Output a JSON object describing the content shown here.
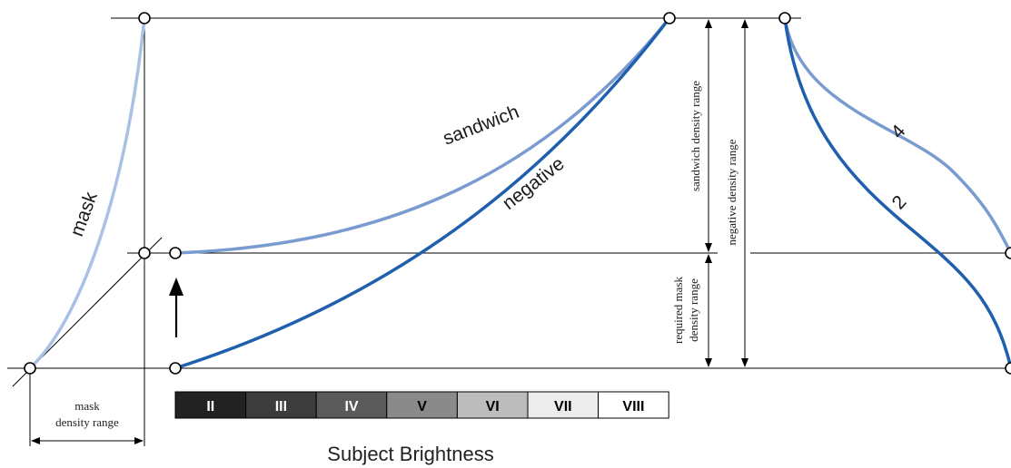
{
  "labels": {
    "mask": "mask",
    "sandwich": "sandwich",
    "negative": "negative",
    "sandwich_density_range": "sandwich density range",
    "negative_density_range": "negative density range",
    "required_mask_line1": "required mask",
    "required_mask_line2": "density range",
    "mask_range_line1": "mask",
    "mask_range_line2": "density range",
    "subject_brightness": "Subject Brightness",
    "curve_4": "4",
    "curve_2": "2"
  },
  "zones": [
    "II",
    "III",
    "IV",
    "V",
    "VI",
    "VII",
    "VIII"
  ],
  "zone_colors": [
    "#222222",
    "#3c3c3c",
    "#5a5a5a",
    "#8a8a8a",
    "#bcbcbc",
    "#ececec",
    "#ffffff"
  ],
  "zone_text_colors": [
    "#ffffff",
    "#ffffff",
    "#ffffff",
    "#000000",
    "#000000",
    "#000000",
    "#000000"
  ],
  "colors": {
    "mask_curve": "#aac0e4",
    "sandwich_curve": "#7a9bd0",
    "negative_curve": "#1f5fad",
    "line": "#000000"
  }
}
